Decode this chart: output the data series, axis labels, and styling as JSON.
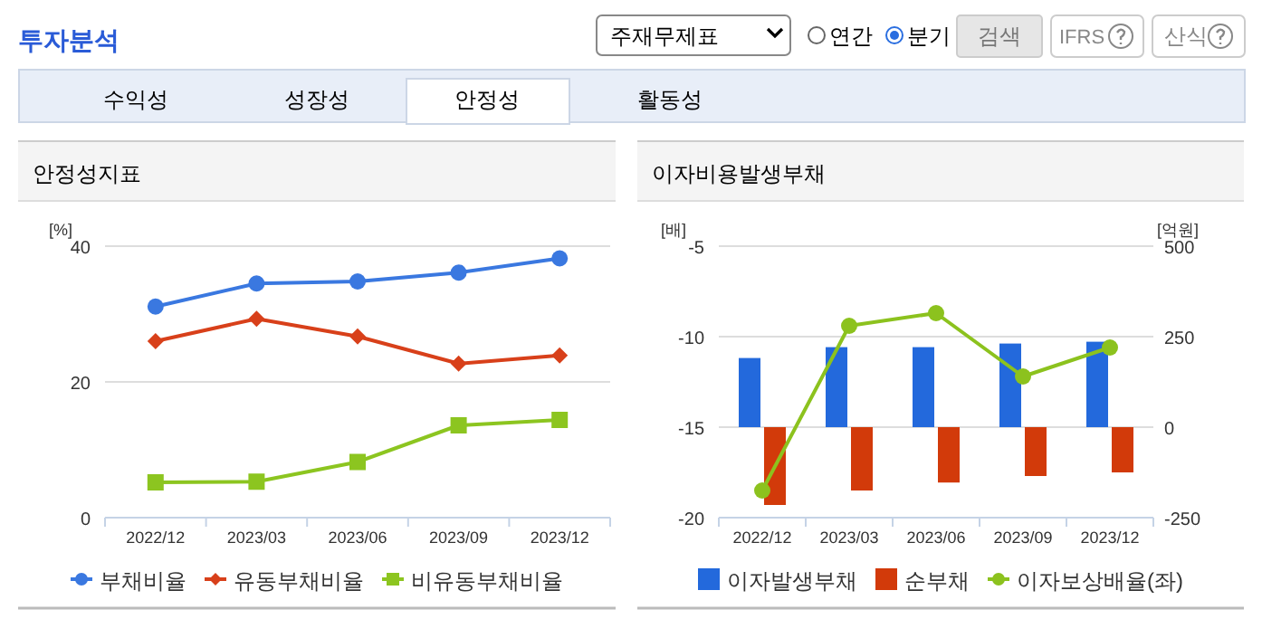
{
  "chart_data": [
    {
      "type": "other",
      "title": "투자분석",
      "annotations": [
        "주재무제표",
        "연간",
        "분기",
        "검색",
        "IFRS",
        "산식",
        "수익성",
        "성장성",
        "안정성",
        "활동성"
      ]
    },
    {
      "type": "line",
      "title": "안정성지표",
      "ylabel": "[%]",
      "categories": [
        "2022/12",
        "2023/03",
        "2023/06",
        "2023/09",
        "2023/12"
      ],
      "ylim": [
        0,
        40
      ],
      "yticks": [
        0,
        20,
        40
      ],
      "grid": "y",
      "legend": "bottom",
      "series": [
        {
          "name": "부채비율",
          "color": "#3a78e0",
          "marker": "circle",
          "values": [
            31.1,
            34.5,
            34.8,
            36.1,
            38.2
          ]
        },
        {
          "name": "유동부채비율",
          "color": "#d8401a",
          "marker": "diamond",
          "values": [
            26.0,
            29.3,
            26.7,
            22.7,
            23.9
          ]
        },
        {
          "name": "비유동부채비율",
          "color": "#8cc520",
          "marker": "square",
          "values": [
            5.2,
            5.3,
            8.2,
            13.6,
            14.4
          ]
        }
      ]
    },
    {
      "type": "bar",
      "title": "이자비용발생부채",
      "ylabel": "[배]",
      "y2label": "[억원]",
      "categories": [
        "2022/12",
        "2023/03",
        "2023/06",
        "2023/09",
        "2023/12"
      ],
      "ylim": [
        -20,
        -5
      ],
      "yticks": [
        -20,
        -15,
        -10,
        -5
      ],
      "y2lim": [
        -250,
        500
      ],
      "y2ticks": [
        -250,
        0,
        250,
        500
      ],
      "grid": "y",
      "legend": "bottom",
      "series": [
        {
          "name": "이자발생부채",
          "color": "#2369dc",
          "axis": "y2",
          "values": [
            191,
            221,
            221,
            231,
            236
          ]
        },
        {
          "name": "순부채",
          "color": "#d23a0a",
          "axis": "y2",
          "values": [
            -215,
            -175,
            -153,
            -135,
            -125
          ]
        },
        {
          "name": "이자보상배율(좌)",
          "type": "line",
          "color": "#8cc21e",
          "marker": "circle",
          "axis": "y",
          "values": [
            -18.5,
            -9.4,
            -8.7,
            -12.2,
            -10.6
          ]
        }
      ]
    }
  ]
}
